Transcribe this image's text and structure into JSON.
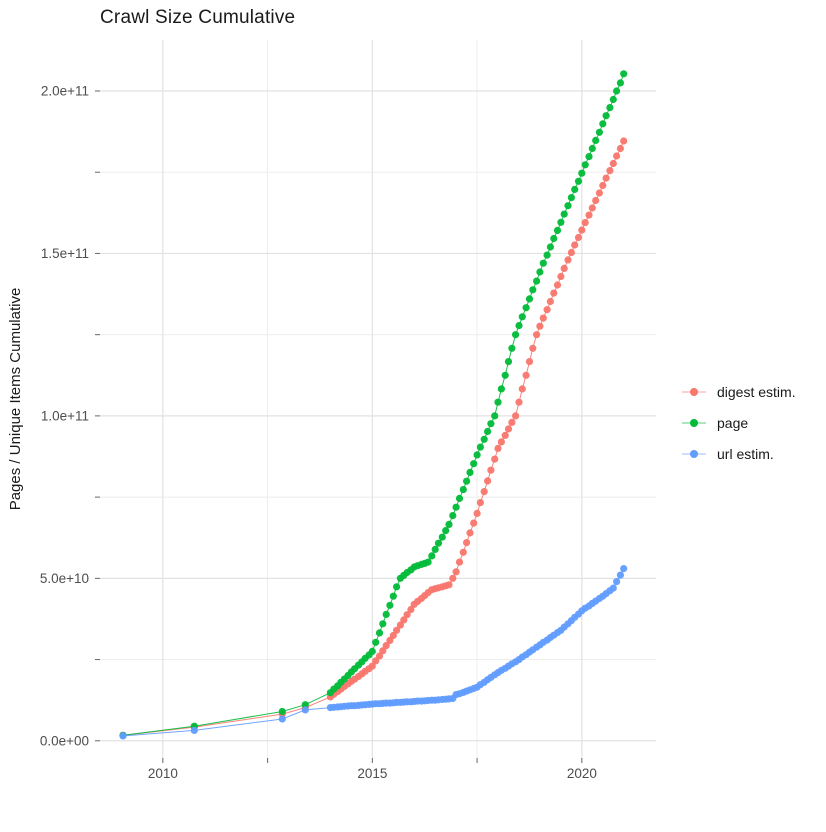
{
  "chart_data": {
    "type": "scatter",
    "title": "Crawl Size Cumulative",
    "xlabel": "",
    "ylabel": "Pages / Unique Items Cumulative",
    "values_unit": "1e9 (billions of pages / items)",
    "legend_position": "right",
    "grid": true,
    "x_domain": [
      2008.5,
      2021.77
    ],
    "y_domain_e9": [
      -5.3,
      215.7
    ],
    "x_ticks": {
      "major": [
        2010,
        2015,
        2020
      ],
      "labels": [
        "2010",
        "2015",
        "2020"
      ],
      "minor": [
        2012.5,
        2017.5
      ]
    },
    "y_ticks": {
      "major_e9": [
        0,
        50,
        100,
        150,
        200
      ],
      "labels": [
        "0.0e+00",
        "5.0e+10",
        "1.0e+11",
        "1.5e+11",
        "2.0e+11"
      ],
      "minor_e9": [
        25,
        75,
        125,
        175
      ]
    },
    "x": [
      2009.05,
      2010.75,
      2012.85,
      2013.4,
      2014,
      2014.08,
      2014.17,
      2014.25,
      2014.33,
      2014.42,
      2014.5,
      2014.58,
      2014.67,
      2014.75,
      2014.83,
      2014.92,
      2015,
      2015.08,
      2015.17,
      2015.25,
      2015.33,
      2015.42,
      2015.5,
      2015.58,
      2015.67,
      2015.75,
      2015.83,
      2015.92,
      2016,
      2016.08,
      2016.17,
      2016.25,
      2016.33,
      2016.42,
      2016.5,
      2016.58,
      2016.67,
      2016.75,
      2016.83,
      2016.92,
      2017,
      2017.08,
      2017.17,
      2017.25,
      2017.33,
      2017.42,
      2017.5,
      2017.58,
      2017.67,
      2017.75,
      2017.83,
      2017.92,
      2018,
      2018.08,
      2018.17,
      2018.25,
      2018.33,
      2018.42,
      2018.5,
      2018.58,
      2018.67,
      2018.75,
      2018.83,
      2018.92,
      2019,
      2019.08,
      2019.17,
      2019.25,
      2019.33,
      2019.42,
      2019.5,
      2019.58,
      2019.67,
      2019.75,
      2019.83,
      2019.92,
      2020,
      2020.08,
      2020.17,
      2020.25,
      2020.33,
      2020.42,
      2020.5,
      2020.58,
      2020.67,
      2020.75,
      2020.83,
      2020.92,
      2021
    ],
    "series": [
      {
        "name": "digest estim.",
        "color": "#F8766D",
        "values": [
          1.7,
          4.2,
          8.2,
          10.2,
          13.5,
          14.3,
          15.1,
          15.9,
          16.7,
          17.5,
          18.3,
          19,
          19.8,
          20.6,
          21.4,
          22.2,
          23,
          24.6,
          26.1,
          27.7,
          29.3,
          30.9,
          32.4,
          34,
          35.6,
          37.2,
          38.8,
          40.4,
          42,
          42.9,
          43.8,
          44.7,
          45.6,
          46.5,
          46.8,
          47.1,
          47.4,
          47.7,
          48,
          50,
          52,
          55,
          58,
          61,
          64,
          67,
          70,
          73.3,
          76.7,
          80,
          83.3,
          86.7,
          90,
          92,
          94,
          96,
          98,
          100,
          104.2,
          108.3,
          112.5,
          116.7,
          120.8,
          125,
          127.6,
          130.1,
          132.7,
          135.2,
          137.8,
          140.3,
          142.9,
          145.4,
          148,
          150.3,
          152.6,
          154.9,
          157.2,
          159.5,
          161.8,
          164,
          166.3,
          168.6,
          170.9,
          173.2,
          175.5,
          177.7,
          180,
          182.3,
          184.6
        ]
      },
      {
        "name": "page",
        "color": "#00BA38",
        "values": [
          1.7,
          4.5,
          9,
          11.1,
          14.8,
          15.9,
          16.9,
          18,
          19,
          20.1,
          21.2,
          22.2,
          23.3,
          24.3,
          25.4,
          26.4,
          27.5,
          30.3,
          33.2,
          36,
          38.9,
          41.7,
          44.5,
          47.4,
          50,
          50.9,
          51.8,
          52.6,
          53.5,
          53.9,
          54.3,
          54.6,
          55,
          56.9,
          58.9,
          60.8,
          62.7,
          64.7,
          66.6,
          69.3,
          71.9,
          74.6,
          77.3,
          79.9,
          82.6,
          85.3,
          88,
          90.4,
          92.8,
          95.2,
          97.6,
          100,
          104.2,
          108.3,
          112.5,
          116.7,
          120.8,
          125,
          127.8,
          130.5,
          133.3,
          136,
          138.8,
          141.5,
          144.3,
          147,
          149.5,
          152,
          154.6,
          157.1,
          159.6,
          162.1,
          164.7,
          167.2,
          169.7,
          172.2,
          174.7,
          177.3,
          179.8,
          182.3,
          184.8,
          187.3,
          189.9,
          192.4,
          194.9,
          197.4,
          200,
          202.5,
          205.3
        ]
      },
      {
        "name": "url estim.",
        "color": "#619CFF",
        "values": [
          1.5,
          3.2,
          6.7,
          9.5,
          10.2,
          10.3,
          10.4,
          10.5,
          10.6,
          10.7,
          10.8,
          10.8,
          10.9,
          11,
          11.1,
          11.2,
          11.3,
          11.4,
          11.4,
          11.5,
          11.6,
          11.6,
          11.7,
          11.8,
          11.8,
          11.9,
          12,
          12,
          12.1,
          12.2,
          12.2,
          12.3,
          12.4,
          12.5,
          12.5,
          12.6,
          12.7,
          12.8,
          12.9,
          13,
          14.2,
          14.5,
          14.9,
          15.3,
          15.7,
          16.1,
          16.5,
          17.3,
          18,
          18.8,
          19.5,
          20.3,
          21,
          21.7,
          22.3,
          23,
          23.7,
          24.3,
          25,
          25.8,
          26.5,
          27.3,
          28,
          28.8,
          29.5,
          30.3,
          31,
          31.8,
          32.5,
          33.3,
          34,
          35,
          36,
          37,
          38,
          39,
          40,
          40.8,
          41.5,
          42.3,
          43,
          43.8,
          44.5,
          45.3,
          46.2,
          47,
          49,
          51,
          53
        ]
      }
    ],
    "style": {
      "point_radius": 3.6,
      "grid_major_color": "#e2e2e2",
      "grid_minor_color": "#ececec",
      "tick_color": "#666666",
      "tick_label_color": "#4d4d4d",
      "title_color": "#1a1a1a"
    }
  }
}
